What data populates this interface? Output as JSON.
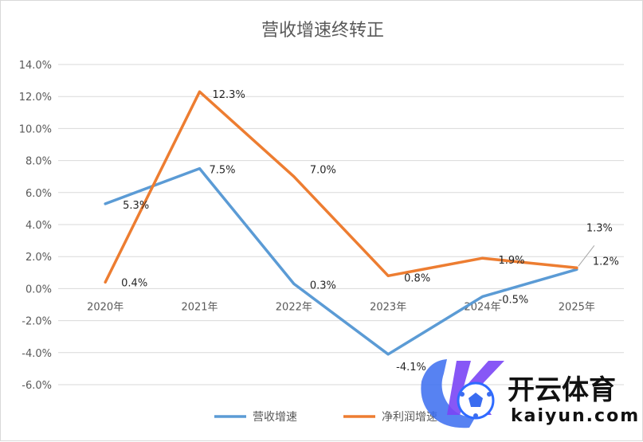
{
  "chart_data": {
    "type": "line",
    "title": "营收增速终转正",
    "categories": [
      "2020年",
      "2021年",
      "2022年",
      "2023年",
      "2024年",
      "2025年"
    ],
    "y_ticks": [
      "14.0%",
      "12.0%",
      "10.0%",
      "8.0%",
      "6.0%",
      "4.0%",
      "2.0%",
      "0.0%",
      "-2.0%",
      "-4.0%",
      "-6.0%"
    ],
    "ylim": [
      -6,
      14
    ],
    "grid": true,
    "legend_position": "bottom",
    "series": [
      {
        "name": "营收增速",
        "color": "#5b9bd5",
        "values": [
          5.3,
          7.5,
          0.3,
          -4.1,
          -0.5,
          1.2
        ],
        "labels": [
          "5.3%",
          "7.5%",
          "0.3%",
          "-4.1%",
          "-0.5%",
          "1.2%"
        ]
      },
      {
        "name": "净利润增速",
        "color": "#ed7d31",
        "values": [
          0.4,
          12.3,
          7.0,
          0.8,
          1.9,
          1.3
        ],
        "labels": [
          "0.4%",
          "12.3%",
          "7.0%",
          "0.8%",
          "1.9%",
          "1.3%"
        ]
      }
    ]
  },
  "watermark": {
    "brand_cn": "开云体育",
    "brand_en": "kaiyun.com",
    "logo_colors": [
      "#2f6bff",
      "#8a3ffc"
    ]
  }
}
